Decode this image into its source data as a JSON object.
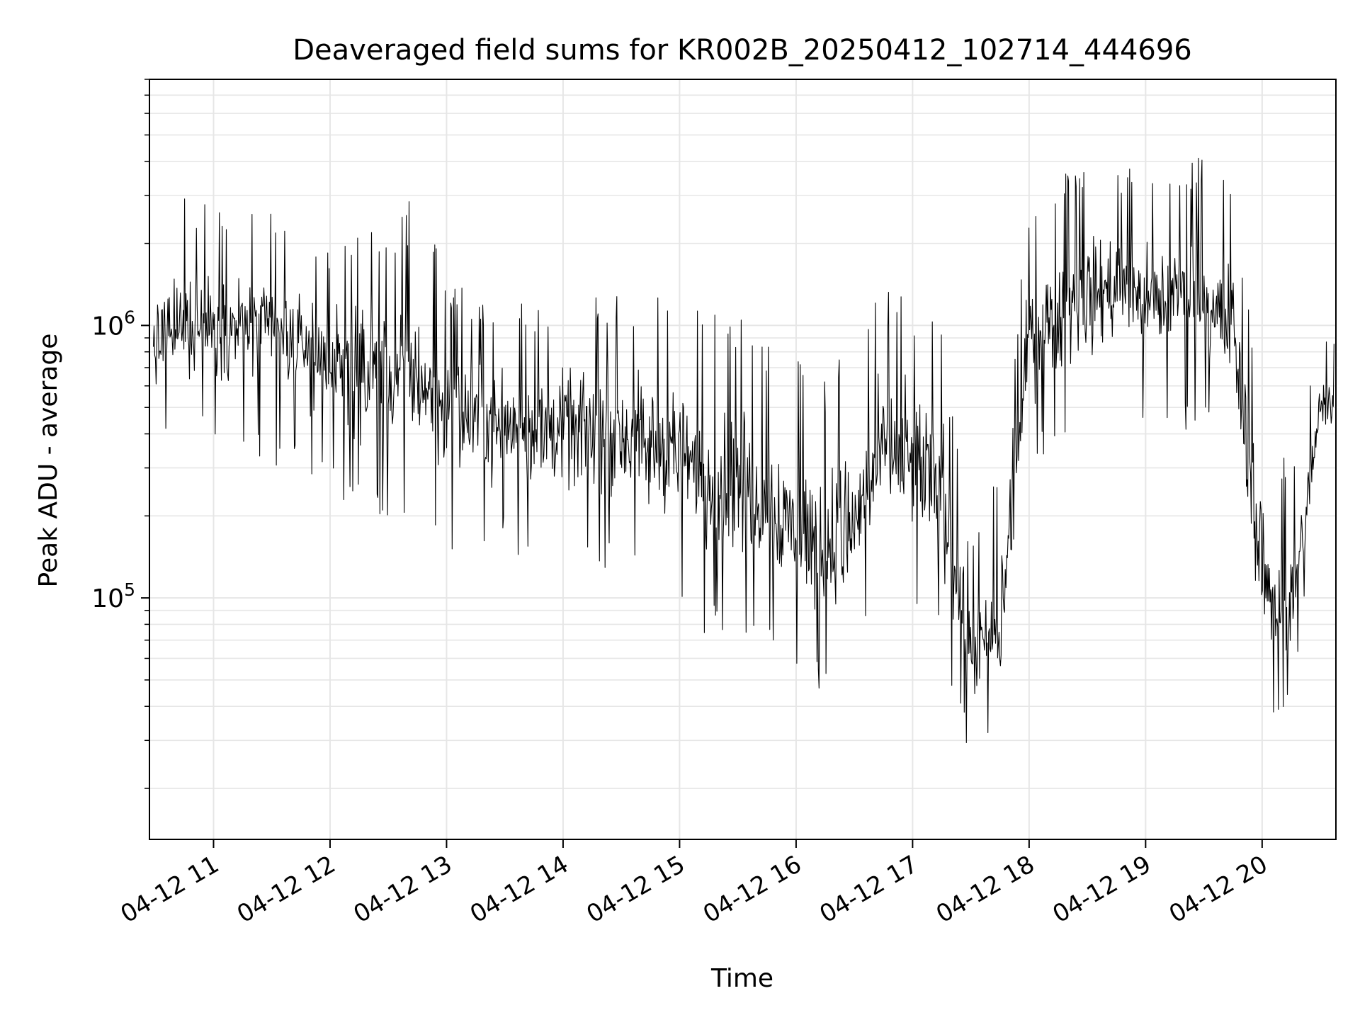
{
  "chart_data": {
    "type": "line",
    "title": "Deaveraged field sums for KR002B_20250412_102714_444696",
    "xlabel": "Time",
    "ylabel": "Peak ADU - average",
    "yscale": "log",
    "grid": true,
    "x_axis_type": "datetime",
    "xlim": [
      "2025-04-12 10:27",
      "2025-04-12 20:38"
    ],
    "ylim": [
      13000,
      8000000
    ],
    "x_ticks": [
      {
        "time": "2025-04-12 11:00",
        "label": "04-12 11"
      },
      {
        "time": "2025-04-12 12:00",
        "label": "04-12 12"
      },
      {
        "time": "2025-04-12 13:00",
        "label": "04-12 13"
      },
      {
        "time": "2025-04-12 14:00",
        "label": "04-12 14"
      },
      {
        "time": "2025-04-12 15:00",
        "label": "04-12 15"
      },
      {
        "time": "2025-04-12 16:00",
        "label": "04-12 16"
      },
      {
        "time": "2025-04-12 17:00",
        "label": "04-12 17"
      },
      {
        "time": "2025-04-12 18:00",
        "label": "04-12 18"
      },
      {
        "time": "2025-04-12 19:00",
        "label": "04-12 19"
      },
      {
        "time": "2025-04-12 20:00",
        "label": "04-12 20"
      }
    ],
    "y_ticks": [
      {
        "value": 100000,
        "base": "10",
        "exp": "5"
      },
      {
        "value": 1000000,
        "base": "10",
        "exp": "6"
      }
    ],
    "line_color": "#000000",
    "series": [
      {
        "x": [
          "2025-04-12 10:30",
          "2025-04-12 10:45",
          "2025-04-12 11:00",
          "2025-04-12 11:15",
          "2025-04-12 11:30",
          "2025-04-12 11:45",
          "2025-04-12 12:00",
          "2025-04-12 12:15",
          "2025-04-12 12:30",
          "2025-04-12 12:45",
          "2025-04-12 13:00",
          "2025-04-12 13:15",
          "2025-04-12 13:30",
          "2025-04-12 13:45",
          "2025-04-12 14:00",
          "2025-04-12 14:15",
          "2025-04-12 14:30",
          "2025-04-12 14:45",
          "2025-04-12 15:00",
          "2025-04-12 15:15",
          "2025-04-12 15:30",
          "2025-04-12 15:45",
          "2025-04-12 16:00",
          "2025-04-12 16:15",
          "2025-04-12 16:30",
          "2025-04-12 16:45",
          "2025-04-12 17:00",
          "2025-04-12 17:15",
          "2025-04-12 17:30",
          "2025-04-12 17:45",
          "2025-04-12 18:00",
          "2025-04-12 18:15",
          "2025-04-12 18:30",
          "2025-04-12 18:45",
          "2025-04-12 19:00",
          "2025-04-12 19:15",
          "2025-04-12 19:30",
          "2025-04-12 19:45",
          "2025-04-12 20:00",
          "2025-04-12 20:15",
          "2025-04-12 20:30"
        ],
        "y": [
          850000,
          950000,
          1000000,
          1000000,
          900000,
          850000,
          700000,
          650000,
          600000,
          650000,
          500000,
          450000,
          450000,
          420000,
          420000,
          400000,
          400000,
          350000,
          350000,
          250000,
          280000,
          220000,
          180000,
          150000,
          180000,
          350000,
          300000,
          250000,
          60000,
          70000,
          900000,
          1100000,
          1300000,
          1400000,
          1200000,
          1300000,
          1200000,
          1000000,
          120000,
          80000,
          500000
        ],
        "low": [
          400000,
          450000,
          400000,
          350000,
          300000,
          300000,
          250000,
          200000,
          200000,
          200000,
          150000,
          150000,
          150000,
          130000,
          130000,
          120000,
          120000,
          100000,
          100000,
          70000,
          70000,
          60000,
          50000,
          45000,
          50000,
          120000,
          80000,
          60000,
          25000,
          30000,
          300000,
          350000,
          400000,
          500000,
          400000,
          400000,
          400000,
          300000,
          35000,
          40000,
          300000
        ],
        "high": [
          2500000,
          3000000,
          2800000,
          3000000,
          2800000,
          2500000,
          2000000,
          2200000,
          2500000,
          3000000,
          1500000,
          1300000,
          1200000,
          1200000,
          1200000,
          1300000,
          1300000,
          1300000,
          1300000,
          1500000,
          1100000,
          900000,
          800000,
          700000,
          900000,
          1400000,
          1300000,
          1100000,
          150000,
          300000,
          3000000,
          3500000,
          4000000,
          4000000,
          3500000,
          4000000,
          4500000,
          3000000,
          600000,
          300000,
          900000
        ]
      }
    ]
  }
}
